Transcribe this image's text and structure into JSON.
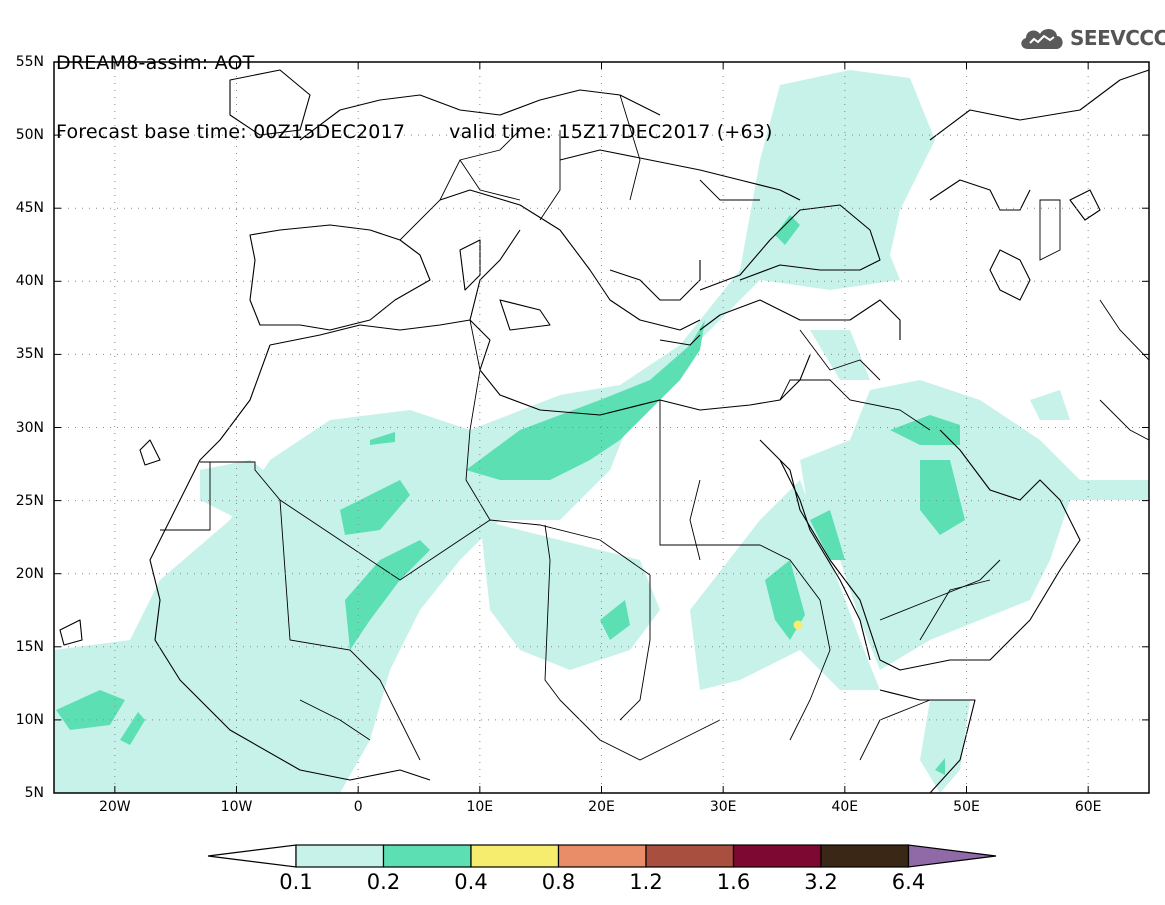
{
  "header": {
    "title_line1": "DREAM8-assim: AOT",
    "base_time": "Forecast base time: 00Z15DEC2017",
    "valid_time": "valid time: 15Z17DEC2017 (+63)"
  },
  "logo": {
    "text": "SEEVCCC",
    "icon": "cloud-icon"
  },
  "map": {
    "lat_labels": [
      "55N",
      "50N",
      "45N",
      "40N",
      "35N",
      "30N",
      "25N",
      "20N",
      "15N",
      "10N",
      "5N"
    ],
    "lon_labels": [
      "20W",
      "10W",
      "0",
      "10E",
      "20E",
      "30E",
      "40E",
      "50E",
      "60E"
    ],
    "lat_range": [
      5,
      55
    ],
    "lon_range": [
      -25,
      65
    ],
    "grid": "dotted"
  },
  "colorbar": {
    "levels": [
      "0.1",
      "0.2",
      "0.4",
      "0.8",
      "1.2",
      "1.6",
      "3.2",
      "6.4"
    ],
    "colors": [
      "#ffffff",
      "#c7f2ea",
      "#5ddfb4",
      "#f6ec6e",
      "#e98c68",
      "#a94f3f",
      "#7d0932",
      "#3a2716",
      "#8f6aa6"
    ]
  }
}
